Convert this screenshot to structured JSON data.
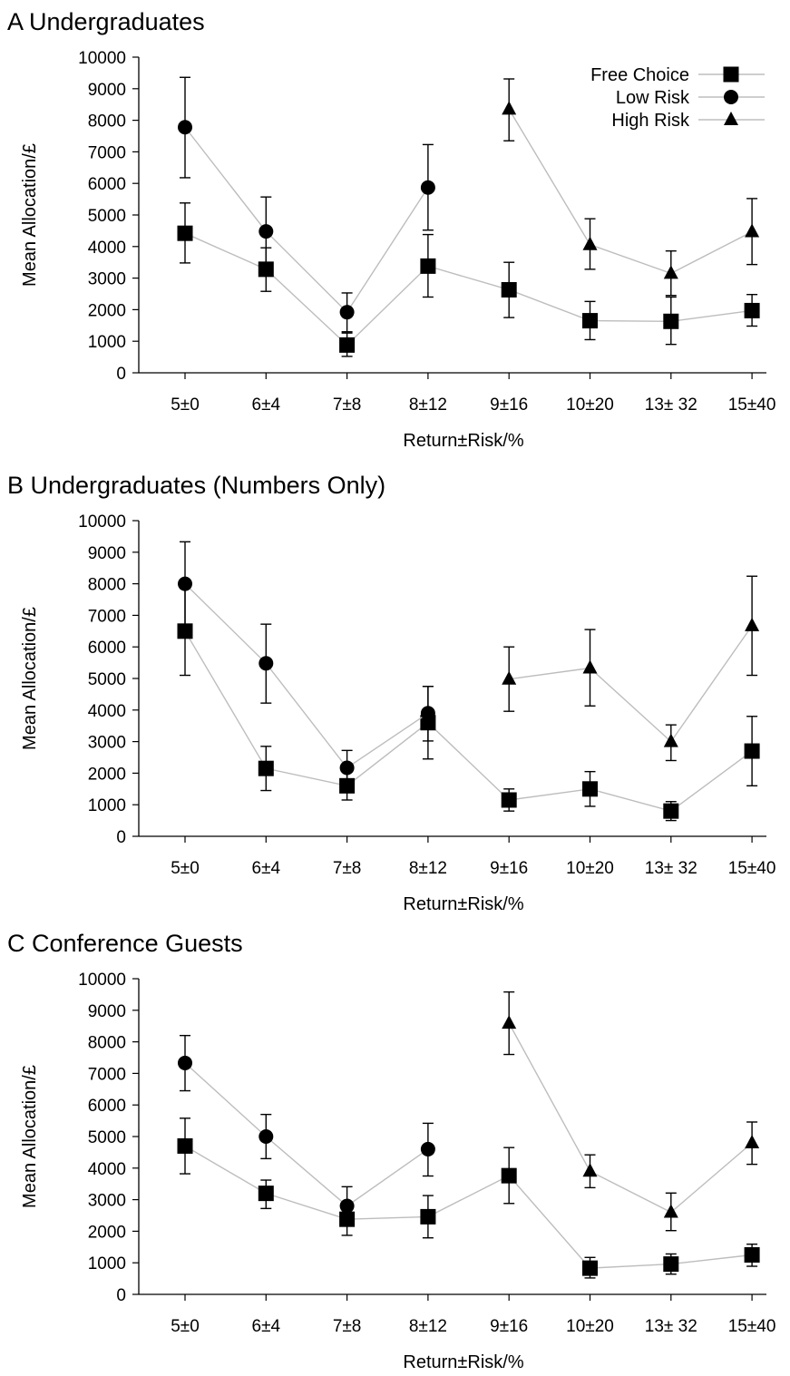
{
  "figure": {
    "marker_color": "#000000",
    "line_color": "#bdbdbd"
  },
  "chart_data": [
    {
      "type": "line",
      "title": "A  Undergraduates",
      "xlabel": "Return±Risk/%",
      "ylabel": "Mean Allocation/£",
      "categories": [
        "5±0",
        "6±4",
        "7±8",
        "8±12",
        "9±16",
        "10±20",
        "13± 32",
        "15±40"
      ],
      "yticks": [
        "0",
        "1000",
        "2000",
        "3000",
        "4000",
        "5000",
        "6000",
        "7000",
        "8000",
        "9000",
        "10000"
      ],
      "ylim": [
        0,
        10000
      ],
      "grid": false,
      "legend_position": "top-right",
      "legend": [
        "Free Choice",
        "Low Risk",
        "High Risk"
      ],
      "series": [
        {
          "name": "Free Choice",
          "marker": "square",
          "values": [
            4420,
            3280,
            880,
            3380,
            2630,
            1650,
            1630,
            1970
          ],
          "err_lo": [
            3480,
            2580,
            520,
            2400,
            1750,
            1050,
            900,
            1480
          ],
          "err_hi": [
            5380,
            3960,
            1260,
            4380,
            3500,
            2260,
            2400,
            2480
          ]
        },
        {
          "name": "Low Risk",
          "marker": "circle",
          "values": [
            7780,
            4480,
            1920,
            5870,
            null,
            null,
            null,
            null
          ],
          "err_lo": [
            6180,
            3420,
            1300,
            4520,
            null,
            null,
            null,
            null
          ],
          "err_hi": [
            9360,
            5570,
            2530,
            7230,
            null,
            null,
            null,
            null
          ]
        },
        {
          "name": "High Risk",
          "marker": "triangle",
          "values": [
            null,
            null,
            null,
            null,
            8350,
            4060,
            3150,
            4470
          ],
          "err_lo": [
            null,
            null,
            null,
            null,
            7350,
            3280,
            2450,
            3430
          ],
          "err_hi": [
            null,
            null,
            null,
            null,
            9310,
            4880,
            3860,
            5520
          ]
        }
      ]
    },
    {
      "type": "line",
      "title": "B  Undergraduates (Numbers Only)",
      "xlabel": "Return±Risk/%",
      "ylabel": "Mean Allocation/£",
      "categories": [
        "5±0",
        "6±4",
        "7±8",
        "8±12",
        "9±16",
        "10±20",
        "13± 32",
        "15±40"
      ],
      "yticks": [
        "0",
        "1000",
        "2000",
        "3000",
        "4000",
        "5000",
        "6000",
        "7000",
        "8000",
        "9000",
        "10000"
      ],
      "ylim": [
        0,
        10000
      ],
      "grid": false,
      "series": [
        {
          "name": "Free Choice",
          "marker": "square",
          "values": [
            6500,
            2150,
            1600,
            3600,
            1150,
            1500,
            800,
            2700
          ],
          "err_lo": [
            5100,
            1450,
            1150,
            2450,
            800,
            950,
            500,
            1600
          ],
          "err_hi": [
            7850,
            2850,
            2050,
            4750,
            1500,
            2050,
            1100,
            3800
          ]
        },
        {
          "name": "Low Risk",
          "marker": "circle",
          "values": [
            8000,
            5480,
            2170,
            3900,
            null,
            null,
            null,
            null
          ],
          "err_lo": [
            6700,
            4220,
            1650,
            3020,
            null,
            null,
            null,
            null
          ],
          "err_hi": [
            9330,
            6720,
            2720,
            4750,
            null,
            null,
            null,
            null
          ]
        },
        {
          "name": "High Risk",
          "marker": "triangle",
          "values": [
            null,
            null,
            null,
            null,
            4980,
            5330,
            3000,
            6670
          ],
          "err_lo": [
            null,
            null,
            null,
            null,
            3960,
            4130,
            2400,
            5100
          ],
          "err_hi": [
            null,
            null,
            null,
            null,
            6000,
            6550,
            3530,
            8240
          ]
        }
      ]
    },
    {
      "type": "line",
      "title": "C  Conference Guests",
      "xlabel": "Return±Risk/%",
      "ylabel": "Mean Allocation/£",
      "categories": [
        "5±0",
        "6±4",
        "7±8",
        "8±12",
        "9±16",
        "10±20",
        "13± 32",
        "15±40"
      ],
      "yticks": [
        "0",
        "1000",
        "2000",
        "3000",
        "4000",
        "5000",
        "6000",
        "7000",
        "8000",
        "9000",
        "10000"
      ],
      "ylim": [
        0,
        10000
      ],
      "grid": false,
      "series": [
        {
          "name": "Free Choice",
          "marker": "square",
          "values": [
            4700,
            3200,
            2380,
            2460,
            3760,
            830,
            960,
            1250
          ],
          "err_lo": [
            3820,
            2720,
            1870,
            1790,
            2880,
            520,
            640,
            890
          ],
          "err_hi": [
            5580,
            3620,
            2910,
            3130,
            4650,
            1170,
            1280,
            1590
          ]
        },
        {
          "name": "Low Risk",
          "marker": "circle",
          "values": [
            7330,
            5000,
            2800,
            4600,
            null,
            null,
            null,
            null
          ],
          "err_lo": [
            6450,
            4300,
            2240,
            3750,
            null,
            null,
            null,
            null
          ],
          "err_hi": [
            8200,
            5700,
            3410,
            5420,
            null,
            null,
            null,
            null
          ]
        },
        {
          "name": "High Risk",
          "marker": "triangle",
          "values": [
            null,
            null,
            null,
            null,
            8590,
            3900,
            2600,
            4800
          ],
          "err_lo": [
            null,
            null,
            null,
            null,
            7600,
            3380,
            2020,
            4120
          ],
          "err_hi": [
            null,
            null,
            null,
            null,
            9580,
            4420,
            3210,
            5460
          ]
        }
      ]
    }
  ]
}
